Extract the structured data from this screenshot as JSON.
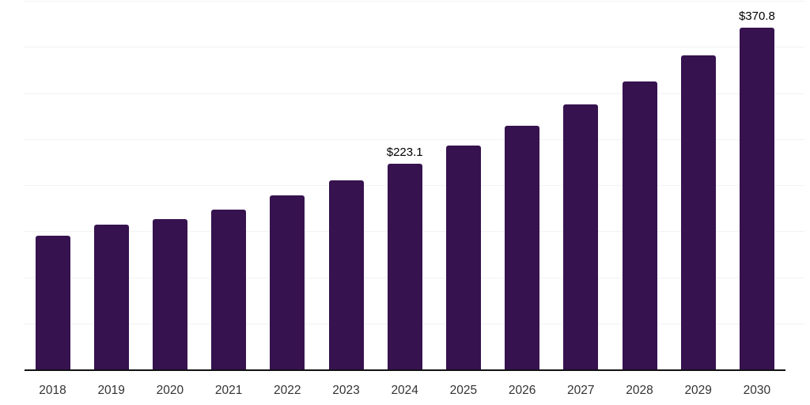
{
  "chart_data": {
    "type": "bar",
    "title": "",
    "xlabel": "",
    "ylabel": "",
    "categories": [
      "2018",
      "2019",
      "2020",
      "2021",
      "2022",
      "2023",
      "2024",
      "2025",
      "2026",
      "2027",
      "2028",
      "2029",
      "2030"
    ],
    "values": [
      145.5,
      156.7,
      162.8,
      173.1,
      188.6,
      204.9,
      223.1,
      242.6,
      264.0,
      287.3,
      312.7,
      340.8,
      370.8
    ],
    "data_labels": [
      {
        "index": 6,
        "text": "$223.1"
      },
      {
        "index": 12,
        "text": "$370.8"
      }
    ],
    "ylim": [
      0,
      400
    ],
    "gridline_interval": 50,
    "grid": true,
    "legend": false,
    "colors": {
      "bar": "#36124f",
      "gridline": "#f2f2f2",
      "axis_line": "#111111",
      "tick_label": "#333333",
      "data_label": "#000000",
      "background": "#ffffff"
    }
  }
}
